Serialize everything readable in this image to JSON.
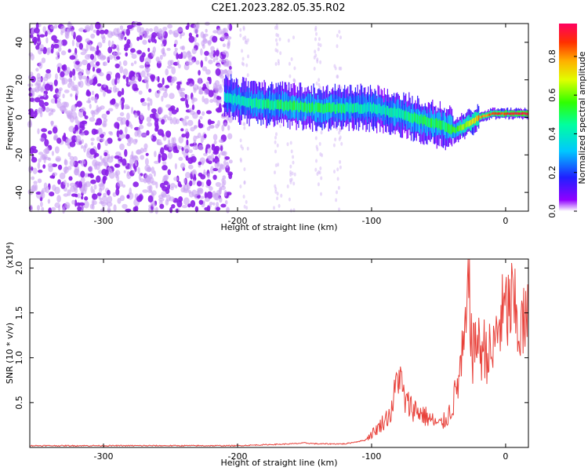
{
  "title": "C2E1.2023.282.05.35.R02",
  "chart_data": [
    {
      "type": "heatmap",
      "xlabel": "Height of straight line (km)",
      "ylabel": "Frequency (Hz)",
      "xlim": [
        -355,
        17
      ],
      "ylim": [
        -50,
        50
      ],
      "xticks": [
        -300,
        -200,
        -100,
        0
      ],
      "yticks": [
        -40,
        -20,
        0,
        20,
        40
      ],
      "colorbar": {
        "label": "Normalized spectral amplitude",
        "range": [
          0,
          0.97
        ],
        "ticks": [
          0.0,
          0.2,
          0.4,
          0.6,
          0.8
        ]
      },
      "signal_track": {
        "x": [
          -210,
          -200,
          -180,
          -160,
          -140,
          -120,
          -100,
          -80,
          -60,
          -45,
          -38,
          -30,
          -20,
          -10,
          0,
          10,
          17
        ],
        "freq_hz": [
          11,
          9,
          7,
          6,
          5,
          5,
          5,
          2,
          -2,
          -5,
          -7,
          -4,
          0,
          2,
          2,
          2,
          2
        ],
        "amplitude": [
          0.35,
          0.4,
          0.45,
          0.5,
          0.5,
          0.45,
          0.4,
          0.45,
          0.5,
          0.5,
          0.55,
          0.65,
          0.8,
          0.85,
          0.9,
          0.95,
          0.95
        ]
      },
      "noise_region": {
        "x_range": [
          -355,
          -205
        ],
        "freq_range": [
          -50,
          50
        ],
        "amplitude": 0.1
      },
      "grid": false
    },
    {
      "type": "line",
      "xlabel": "Height of straight line (km)",
      "ylabel": "SNR (10 * v/v)",
      "y_multiplier": "(x10⁴)",
      "xlim": [
        -355,
        17
      ],
      "ylim": [
        0,
        2.1
      ],
      "xticks": [
        -300,
        -200,
        -100,
        0
      ],
      "yticks": [
        0.5,
        1.0,
        1.5,
        2.0
      ],
      "color": "#e8413a",
      "series": [
        {
          "x": [
            -355,
            -300,
            -250,
            -210,
            -200,
            -180,
            -160,
            -150,
            -140,
            -120,
            -105,
            -95,
            -85,
            -80,
            -75,
            -70,
            -65,
            -60,
            -55,
            -50,
            -45,
            -40,
            -35,
            -30,
            -27,
            -25,
            -22,
            -20,
            -15,
            -10,
            -5,
            0,
            5,
            10,
            17
          ],
          "values": [
            0.02,
            0.02,
            0.02,
            0.02,
            0.02,
            0.03,
            0.04,
            0.05,
            0.04,
            0.04,
            0.08,
            0.22,
            0.4,
            0.85,
            0.5,
            0.45,
            0.4,
            0.35,
            0.3,
            0.25,
            0.3,
            0.45,
            0.75,
            1.2,
            2.05,
            0.9,
            1.3,
            1.1,
            1.1,
            1.0,
            1.4,
            1.5,
            1.6,
            1.3,
            1.4
          ]
        }
      ],
      "grid": false
    }
  ]
}
